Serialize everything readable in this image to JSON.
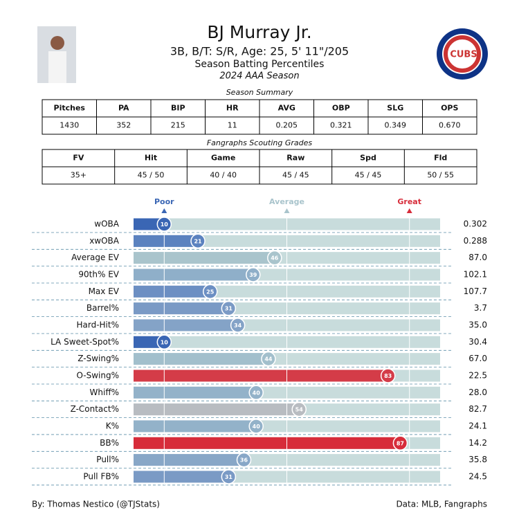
{
  "header": {
    "name": "BJ Murray Jr.",
    "info": "3B, B/T: S/R, Age: 25, 5' 11\"/205",
    "subtitle": "Season Batting Percentiles",
    "season": "2024 AAA Season",
    "logo_text": "CUBS"
  },
  "summary": {
    "title": "Season Summary",
    "columns": [
      "Pitches",
      "PA",
      "BIP",
      "HR",
      "AVG",
      "OBP",
      "SLG",
      "OPS"
    ],
    "rows": [
      [
        "1430",
        "352",
        "215",
        "11",
        "0.205",
        "0.321",
        "0.349",
        "0.670"
      ]
    ]
  },
  "scouting": {
    "title": "Fangraphs Scouting Grades",
    "columns": [
      "FV",
      "Hit",
      "Game",
      "Raw",
      "Spd",
      "Fld"
    ],
    "rows": [
      [
        "35+",
        "45 / 50",
        "40 / 40",
        "45 / 45",
        "45 / 45",
        "50 / 55"
      ]
    ]
  },
  "chart_data": {
    "type": "bar",
    "orientation": "horizontal",
    "categories": [
      "wOBA",
      "xwOBA",
      "Average EV",
      "90th% EV",
      "Max EV",
      "Barrel%",
      "Hard-Hit%",
      "LA Sweet-Spot%",
      "Z-Swing%",
      "O-Swing%",
      "Whiff%",
      "Z-Contact%",
      "K%",
      "BB%",
      "Pull%",
      "Pull FB%"
    ],
    "values": [
      10,
      21,
      46,
      39,
      25,
      31,
      34,
      10,
      44,
      83,
      40,
      54,
      40,
      87,
      36,
      31
    ],
    "colors": [
      "#3a66b4",
      "#5b82bf",
      "#a9c4cc",
      "#8fafc9",
      "#6c8fc3",
      "#7a9ac5",
      "#84a3c7",
      "#3a66b4",
      "#a2bfcc",
      "#d43c48",
      "#93b2c9",
      "#b8bcc1",
      "#93b2c9",
      "#d72c3a",
      "#88a7c7",
      "#7a9ac5"
    ],
    "stats": [
      "0.302",
      "0.288",
      "87.0",
      "102.1",
      "107.7",
      "3.7",
      "35.0",
      "30.4",
      "67.0",
      "22.5",
      "28.0",
      "82.7",
      "24.1",
      "14.2",
      "35.8",
      "24.5"
    ],
    "xlim": [
      0,
      100
    ],
    "xticks": [
      {
        "value": 10,
        "label": "Poor"
      },
      {
        "value": 50,
        "label": "Average"
      },
      {
        "value": 90,
        "label": "Great"
      }
    ],
    "tick_colors": [
      "#3a66b4",
      "#a9c4cc",
      "#d72c3a"
    ],
    "track_color": "#c8dcdc"
  },
  "footer": {
    "left": "By: Thomas Nestico (@TJStats)",
    "right": "Data: MLB, Fangraphs"
  }
}
